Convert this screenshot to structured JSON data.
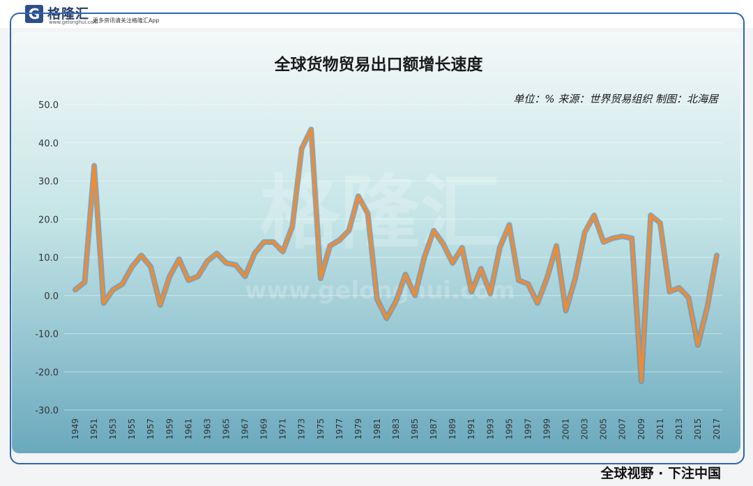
{
  "header": {
    "logo_letter": "G",
    "logo_name": "格隆汇",
    "logo_url": "www.gelonghui.com",
    "slogan": "更多资讯请关注格隆汇App"
  },
  "footer": {
    "caption": "全球视野 · 下注中国"
  },
  "colors": {
    "line_outer": "#6b8fb0",
    "line_inner": "#f28a2e",
    "frame": "#2e64b3"
  },
  "chart_data": {
    "type": "line",
    "title": "全球货物贸易出口额增长速度",
    "subtitle": "单位：% 来源：世界贸易组织 制图：北海居",
    "watermark": "格隆汇",
    "watermark_url": "www.gelonghui.com",
    "ylim": [
      -30,
      50
    ],
    "yticks": [
      "50.0",
      "40.0",
      "30.0",
      "20.0",
      "10.0",
      "0.0",
      "-10.0",
      "-20.0",
      "-30.0"
    ],
    "grid": true,
    "x_tick_labels": [
      "1949",
      "1951",
      "1953",
      "1955",
      "1957",
      "1959",
      "1961",
      "1963",
      "1965",
      "1967",
      "1969",
      "1971",
      "1973",
      "1975",
      "1977",
      "1979",
      "1981",
      "1983",
      "1985",
      "1987",
      "1989",
      "1991",
      "1993",
      "1995",
      "1997",
      "1999",
      "2001",
      "2003",
      "2005",
      "2007",
      "2009",
      "2011",
      "2013",
      "2015",
      "2017"
    ],
    "x": [
      1949,
      1950,
      1951,
      1952,
      1953,
      1954,
      1955,
      1956,
      1957,
      1958,
      1959,
      1960,
      1961,
      1962,
      1963,
      1964,
      1965,
      1966,
      1967,
      1968,
      1969,
      1970,
      1971,
      1972,
      1973,
      1974,
      1975,
      1976,
      1977,
      1978,
      1979,
      1980,
      1981,
      1982,
      1983,
      1984,
      1985,
      1986,
      1987,
      1988,
      1989,
      1990,
      1991,
      1992,
      1993,
      1994,
      1995,
      1996,
      1997,
      1998,
      1999,
      2000,
      2001,
      2002,
      2003,
      2004,
      2005,
      2006,
      2007,
      2008,
      2009,
      2010,
      2011,
      2012,
      2013,
      2014,
      2015,
      2016,
      2017
    ],
    "series": [
      {
        "values": [
          1.5,
          3.5,
          34.0,
          -2.0,
          1.5,
          3.0,
          7.5,
          10.5,
          7.5,
          -2.5,
          5.0,
          9.5,
          4.0,
          5.0,
          9.0,
          11.0,
          8.5,
          8.0,
          5.0,
          11.0,
          14.0,
          14.0,
          11.5,
          18.0,
          38.5,
          43.5,
          4.5,
          13.0,
          14.5,
          17.0,
          26.0,
          21.5,
          -1.0,
          -6.0,
          -1.5,
          5.5,
          0.0,
          10.0,
          17.0,
          13.5,
          8.5,
          12.5,
          1.0,
          7.0,
          0.5,
          12.5,
          18.5,
          4.0,
          3.0,
          -2.0,
          4.5,
          13.0,
          -4.0,
          4.5,
          16.5,
          21.0,
          14.0,
          15.0,
          15.5,
          15.0,
          -22.5,
          21.0,
          19.0,
          1.0,
          2.0,
          -0.5,
          -13.0,
          -3.0,
          10.5
        ]
      }
    ]
  }
}
